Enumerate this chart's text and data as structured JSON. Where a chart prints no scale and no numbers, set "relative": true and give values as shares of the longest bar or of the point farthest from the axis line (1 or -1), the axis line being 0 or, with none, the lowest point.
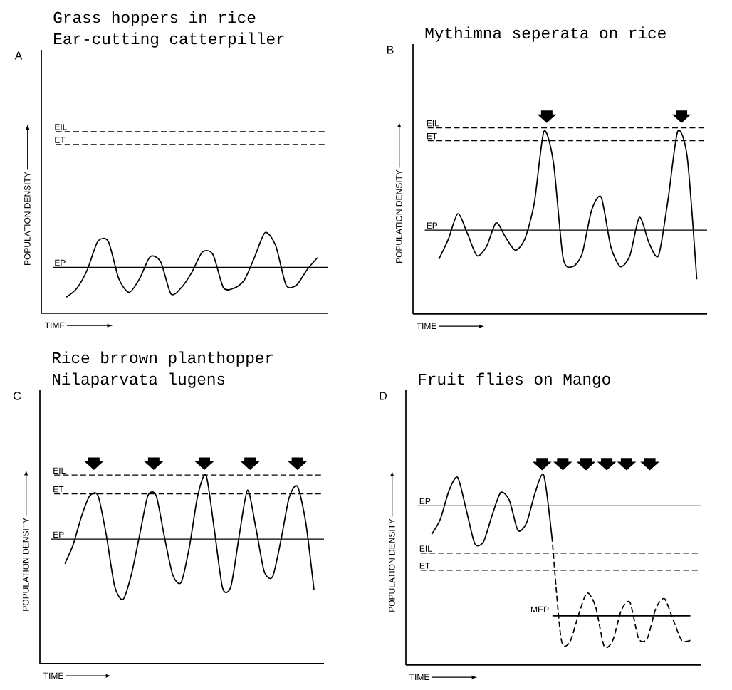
{
  "chart_data": [
    {
      "type": "line",
      "title": "Grass hoppers in rice",
      "subtitle": "Ear-cutting catterpiller",
      "xlabel": "TIME",
      "ylabel": "POPULATION DENSITY",
      "annotations": [
        "A"
      ],
      "relative": true,
      "tick_labels": false,
      "categories": [
        null,
        null,
        null,
        null,
        null,
        null,
        null,
        null,
        null,
        null,
        null,
        null,
        null,
        null,
        null,
        null,
        null,
        null,
        null,
        null,
        null,
        null,
        null,
        null,
        null
      ],
      "series": [
        {
          "color": "#000000",
          "line_style": "solid",
          "values": [
            0.2,
            0.31,
            0.54,
            0.89,
            0.89,
            0.43,
            0.26,
            0.43,
            0.7,
            0.64,
            0.24,
            0.32,
            0.51,
            0.76,
            0.73,
            0.32,
            0.31,
            0.41,
            0.7,
            1.0,
            0.84,
            0.35,
            0.35,
            0.54,
            0.69
          ]
        }
      ],
      "ref_lines": [
        {
          "axis": "y",
          "value": 2.25,
          "label": "EIL",
          "line_style": "dashed"
        },
        {
          "axis": "y",
          "value": 2.09,
          "label": "ET",
          "line_style": "dashed"
        },
        {
          "axis": "y",
          "value": 0.57,
          "label": "EP",
          "line_style": "solid"
        }
      ]
    },
    {
      "type": "line",
      "title": "Mythimna seperata on rice",
      "xlabel": "TIME",
      "ylabel": "POPULATION DENSITY",
      "annotations": [
        "B"
      ],
      "relative": true,
      "tick_labels": false,
      "categories": [
        null,
        null,
        null,
        null,
        null,
        null,
        null,
        null,
        null,
        null,
        null,
        null,
        null,
        null,
        null,
        null,
        null,
        null,
        null,
        null,
        null,
        null,
        null,
        null,
        null,
        null,
        null,
        null
      ],
      "series": [
        {
          "color": "#000000",
          "line_style": "solid",
          "values": [
            0.3,
            0.41,
            0.55,
            0.44,
            0.32,
            0.37,
            0.5,
            0.42,
            0.35,
            0.41,
            0.61,
            1.0,
            0.83,
            0.31,
            0.26,
            0.33,
            0.57,
            0.64,
            0.37,
            0.26,
            0.32,
            0.53,
            0.39,
            0.32,
            0.63,
            1.0,
            0.86,
            0.19
          ]
        }
      ],
      "ref_lines": [
        {
          "axis": "y",
          "value": 1.02,
          "label": "EIL",
          "line_style": "dashed"
        },
        {
          "axis": "y",
          "value": 0.95,
          "label": "ET",
          "line_style": "dashed"
        },
        {
          "axis": "y",
          "value": 0.46,
          "label": "EP",
          "line_style": "solid"
        }
      ]
    },
    {
      "type": "line",
      "title": "Rice brrown planthopper",
      "subtitle": "Nilaparvata lugens",
      "xlabel": "TIME",
      "ylabel": "POPULATION DENSITY",
      "annotations": [
        "C"
      ],
      "relative": true,
      "tick_labels": false,
      "categories": [
        null,
        null,
        null,
        null,
        null,
        null,
        null,
        null,
        null,
        null,
        null,
        null,
        null,
        null,
        null,
        null,
        null,
        null,
        null,
        null,
        null,
        null,
        null,
        null,
        null,
        null,
        null,
        null,
        null,
        null,
        null
      ],
      "series": [
        {
          "color": "#000000",
          "line_style": "solid",
          "values": [
            0.53,
            0.63,
            0.78,
            0.89,
            0.89,
            0.68,
            0.41,
            0.34,
            0.47,
            0.68,
            0.89,
            0.89,
            0.67,
            0.47,
            0.43,
            0.62,
            0.89,
            1.0,
            0.71,
            0.4,
            0.41,
            0.68,
            0.92,
            0.72,
            0.49,
            0.46,
            0.65,
            0.88,
            0.94,
            0.75,
            0.39
          ]
        }
      ],
      "ref_lines": [
        {
          "axis": "y",
          "value": 1.0,
          "label": "EIL",
          "line_style": "dashed"
        },
        {
          "axis": "y",
          "value": 0.9,
          "label": "ET",
          "line_style": "dashed"
        },
        {
          "axis": "y",
          "value": 0.66,
          "label": "EP",
          "line_style": "solid"
        }
      ]
    },
    {
      "type": "line",
      "title": "Fruit flies on Mango",
      "xlabel": "TIME",
      "ylabel": "POPULATION DENSITY",
      "annotations": [
        "D"
      ],
      "relative": true,
      "tick_labels": false,
      "categories": [
        null,
        null,
        null,
        null,
        null,
        null,
        null,
        null,
        null,
        null,
        null,
        null,
        null,
        null,
        null,
        null,
        null,
        null,
        null,
        null,
        null,
        null,
        null,
        null,
        null,
        null,
        null,
        null,
        null,
        null,
        null
      ],
      "series": [
        {
          "color": "#000000",
          "line_style": "solid",
          "values": [
            0.69,
            0.77,
            0.92,
            0.99,
            0.82,
            0.64,
            0.65,
            0.79,
            0.91,
            0.87,
            0.71,
            0.75,
            0.91,
            1.0,
            0.65,
            null,
            null,
            null,
            null,
            null,
            null,
            null,
            null,
            null,
            null,
            null,
            null,
            null,
            null,
            null,
            null
          ]
        },
        {
          "color": "#000000",
          "line_style": "dashed",
          "values": [
            null,
            null,
            null,
            null,
            null,
            null,
            null,
            null,
            null,
            null,
            null,
            null,
            null,
            null,
            0.65,
            0.14,
            0.12,
            0.26,
            0.38,
            0.31,
            0.1,
            0.13,
            0.29,
            0.33,
            0.14,
            0.14,
            0.3,
            0.35,
            0.24,
            0.13,
            0.13
          ]
        },
        {
          "name": "MEP",
          "color": "#000000",
          "line_style": "solid",
          "values": [
            null,
            null,
            null,
            null,
            null,
            null,
            null,
            null,
            null,
            null,
            null,
            null,
            null,
            null,
            0.26,
            0.26,
            0.26,
            0.26,
            0.26,
            0.26,
            0.26,
            0.26,
            0.26,
            0.26,
            0.26,
            0.26,
            0.26,
            0.26,
            0.26,
            0.26,
            0.26
          ]
        }
      ],
      "ref_lines": [
        {
          "axis": "y",
          "value": 0.84,
          "label": "EP",
          "line_style": "solid"
        },
        {
          "axis": "y",
          "value": 0.59,
          "label": "EIL",
          "line_style": "dashed"
        },
        {
          "axis": "y",
          "value": 0.5,
          "label": "ET",
          "line_style": "dashed"
        }
      ]
    }
  ]
}
